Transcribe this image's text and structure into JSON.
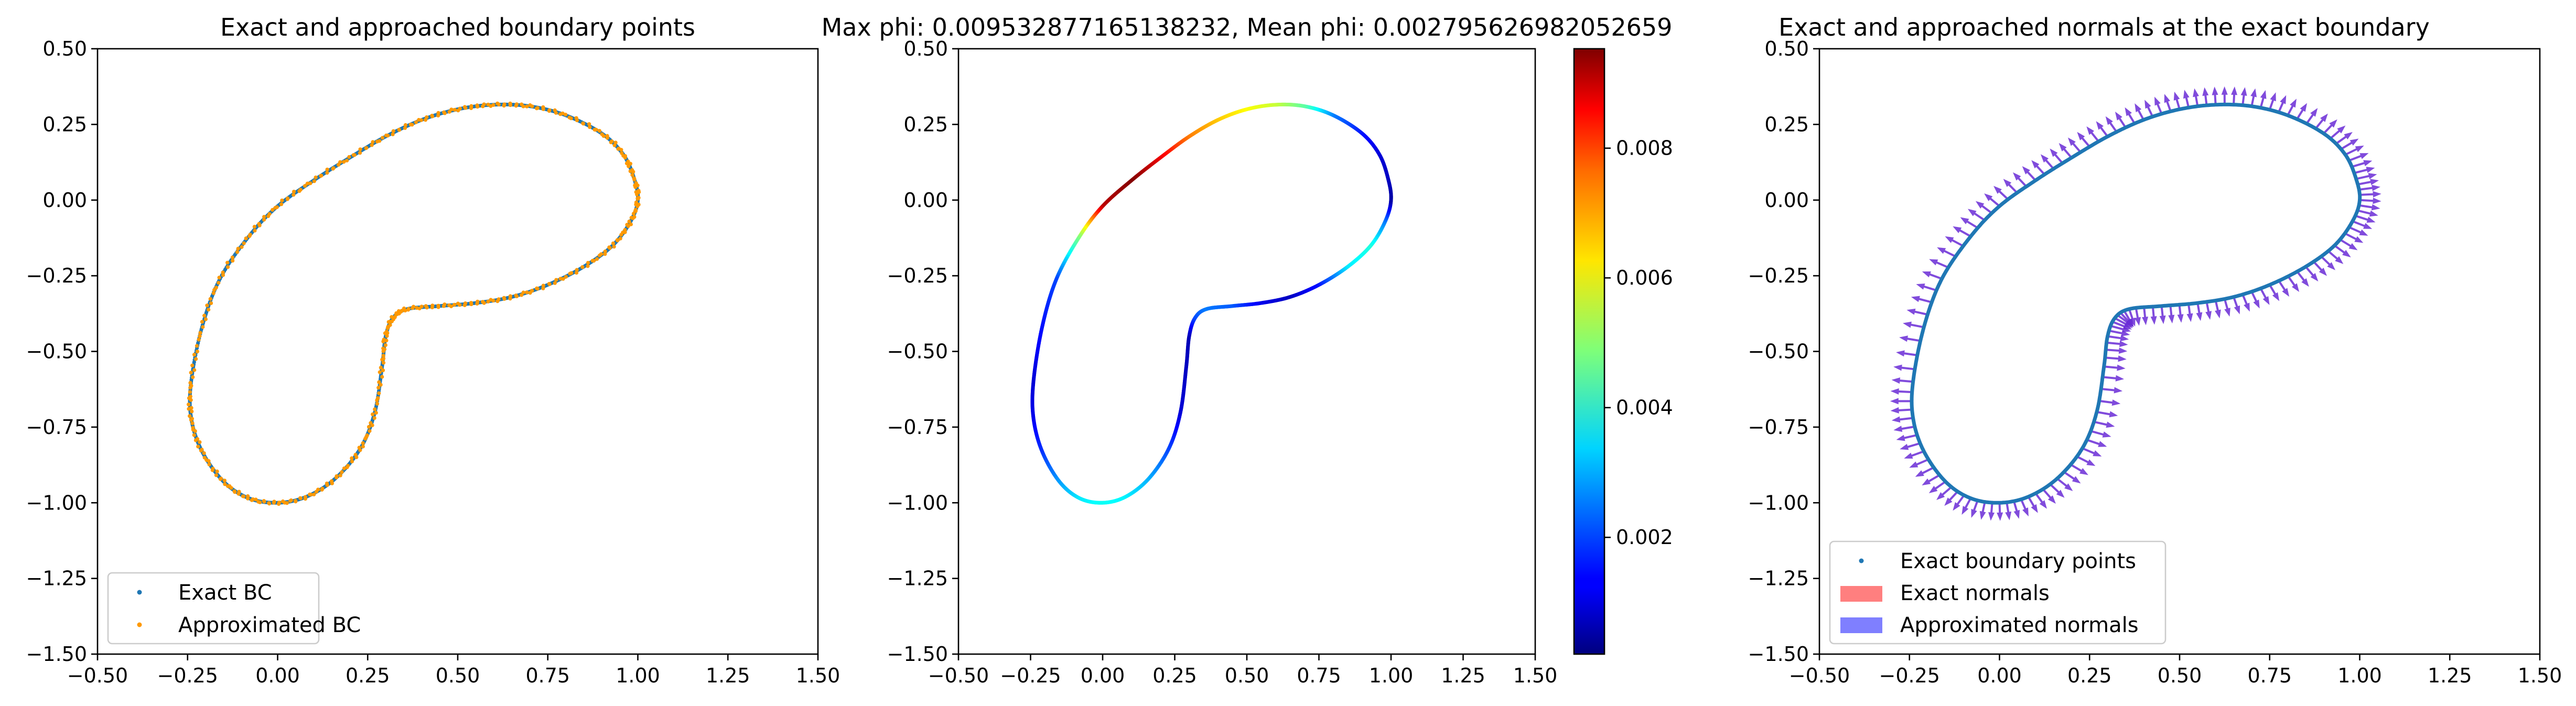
{
  "chart_data": [
    {
      "type": "scatter",
      "title": "Exact and approached boundary points",
      "xlim": [
        -0.5,
        1.5
      ],
      "ylim": [
        -1.5,
        0.5
      ],
      "xticks": [
        "−0.50",
        "−0.25",
        "0.00",
        "0.25",
        "0.50",
        "0.75",
        "1.00",
        "1.25",
        "1.50"
      ],
      "yticks": [
        "0.50",
        "0.25",
        "0.00",
        "−0.25",
        "−0.50",
        "−0.75",
        "−1.00",
        "−1.25",
        "−1.50"
      ],
      "legend_position": "lower-left",
      "series": [
        {
          "name": "Exact BC",
          "color": "#1f77b4",
          "marker": "dot"
        },
        {
          "name": "Approximated BC",
          "color": "#ff9900",
          "marker": "dot"
        }
      ],
      "boundary": {
        "x": [
          1.0,
          0.99,
          0.96,
          0.9,
          0.8,
          0.7,
          0.6,
          0.5,
          0.4,
          0.3,
          0.2,
          0.1,
          0.0,
          -0.08,
          -0.16,
          -0.21,
          -0.24,
          -0.24,
          -0.21,
          -0.15,
          -0.08,
          0.0,
          0.08,
          0.16,
          0.23,
          0.27,
          0.29,
          0.3,
          0.32,
          0.36,
          0.45,
          0.55,
          0.65,
          0.75,
          0.85,
          0.93,
          0.98,
          1.0
        ],
        "y": [
          0.0,
          0.07,
          0.15,
          0.22,
          0.28,
          0.31,
          0.315,
          0.3,
          0.265,
          0.21,
          0.14,
          0.065,
          -0.02,
          -0.12,
          -0.26,
          -0.42,
          -0.6,
          -0.72,
          -0.83,
          -0.93,
          -0.985,
          -1.0,
          -0.98,
          -0.92,
          -0.82,
          -0.7,
          -0.55,
          -0.45,
          -0.39,
          -0.36,
          -0.35,
          -0.34,
          -0.32,
          -0.28,
          -0.22,
          -0.15,
          -0.07,
          0.0
        ]
      }
    },
    {
      "type": "line",
      "title": "Max phi: 0.009532877165138232, Mean phi: 0.002795626982052659",
      "xlim": [
        -0.5,
        1.5
      ],
      "ylim": [
        -1.5,
        0.5
      ],
      "xticks": [
        "−0.50",
        "−0.25",
        "0.00",
        "0.25",
        "0.50",
        "0.75",
        "1.00",
        "1.25",
        "1.50"
      ],
      "yticks": [
        "0.50",
        "0.25",
        "0.00",
        "−0.25",
        "−0.50",
        "−0.75",
        "−1.00",
        "−1.25",
        "−1.50"
      ],
      "colorbar": {
        "colormap": "jet",
        "min": 0.0002,
        "max": 0.009532877165138232,
        "ticks": [
          0.002,
          0.004,
          0.006,
          0.008
        ],
        "tick_labels": [
          "0.002",
          "0.004",
          "0.006",
          "0.008"
        ]
      },
      "phi": [
        0.0005,
        0.0008,
        0.001,
        0.0015,
        0.0025,
        0.0045,
        0.0055,
        0.006,
        0.0065,
        0.0072,
        0.0085,
        0.0095,
        0.009,
        0.005,
        0.002,
        0.0015,
        0.001,
        0.0012,
        0.0018,
        0.0028,
        0.0035,
        0.0038,
        0.0036,
        0.003,
        0.002,
        0.001,
        0.0008,
        0.0007,
        0.002,
        0.0025,
        0.0022,
        0.0012,
        0.0008,
        0.0015,
        0.0035,
        0.004,
        0.0025,
        0.0006
      ]
    },
    {
      "type": "quiver",
      "title": "Exact and approached normals at the exact boundary",
      "xlim": [
        -0.5,
        1.5
      ],
      "ylim": [
        -1.5,
        0.5
      ],
      "xticks": [
        "−0.50",
        "−0.25",
        "0.00",
        "0.25",
        "0.50",
        "0.75",
        "1.00",
        "1.25",
        "1.50"
      ],
      "yticks": [
        "0.50",
        "0.25",
        "0.00",
        "−0.25",
        "−0.50",
        "−0.75",
        "−1.00",
        "−1.25",
        "−1.50"
      ],
      "legend_position": "lower-left",
      "series": [
        {
          "name": "Exact boundary points",
          "color": "#1f77b4",
          "marker": "dot"
        },
        {
          "name": "Exact normals",
          "color": "#ff7f7f",
          "marker": "patch"
        },
        {
          "name": "Approximated normals",
          "color": "#7f7fff",
          "marker": "patch"
        }
      ],
      "arrow_color": "#6a2bd6"
    }
  ]
}
